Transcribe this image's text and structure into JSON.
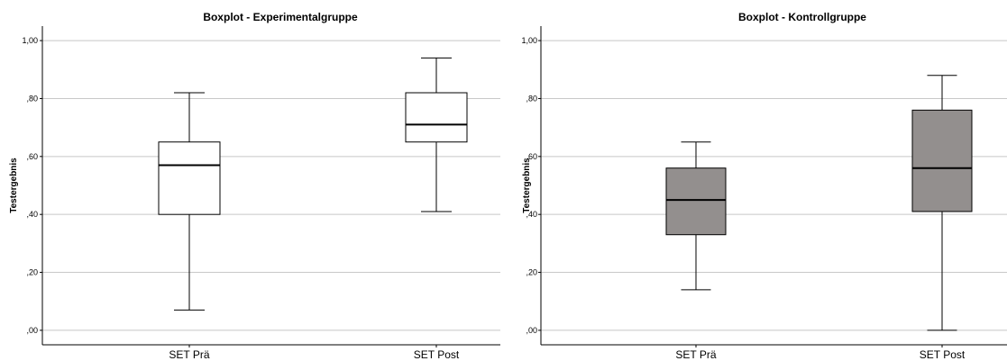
{
  "chart_data": [
    {
      "type": "boxplot",
      "title": "Boxplot - Experimentalgruppe",
      "xlabel": "",
      "ylabel": "Testergebnis",
      "ylim": [
        -0.05,
        1.05
      ],
      "yticks": [
        0,
        0.2,
        0.4,
        0.6,
        0.8,
        1.0
      ],
      "ytick_labels": [
        ",00",
        ",20",
        ",40",
        ",60",
        ",80",
        "1,00"
      ],
      "grid": true,
      "box_color": "#ffffff",
      "categories": [
        "SET Prä",
        "SET Post"
      ],
      "boxes": [
        {
          "min": 0.07,
          "q1": 0.4,
          "median": 0.57,
          "q3": 0.65,
          "max": 0.82
        },
        {
          "min": 0.41,
          "q1": 0.65,
          "median": 0.71,
          "q3": 0.82,
          "max": 0.94
        }
      ]
    },
    {
      "type": "boxplot",
      "title": "Boxplot - Kontrollgruppe",
      "xlabel": "",
      "ylabel": "Testergebnis",
      "ylim": [
        -0.05,
        1.05
      ],
      "yticks": [
        0,
        0.2,
        0.4,
        0.6,
        0.8,
        1.0
      ],
      "ytick_labels": [
        ",00",
        ",20",
        ",40",
        ",60",
        ",80",
        "1,00"
      ],
      "grid": true,
      "box_color": "#938f8e",
      "categories": [
        "SET Prä",
        "SET Post"
      ],
      "boxes": [
        {
          "min": 0.14,
          "q1": 0.33,
          "median": 0.45,
          "q3": 0.56,
          "max": 0.65
        },
        {
          "min": 0.0,
          "q1": 0.41,
          "median": 0.56,
          "q3": 0.76,
          "max": 0.88
        }
      ]
    }
  ]
}
